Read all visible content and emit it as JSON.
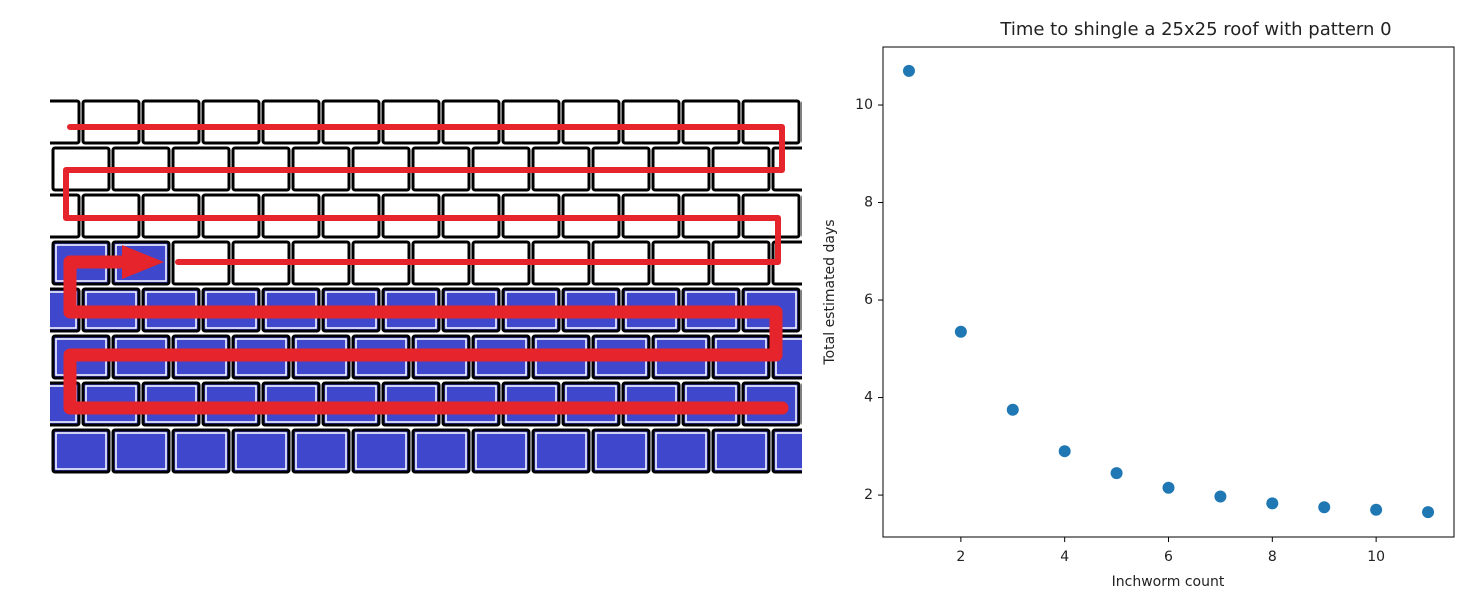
{
  "chart_data": {
    "type": "scatter",
    "title": "Time to shingle a 25x25 roof with pattern 0",
    "xlabel": "Inchworm count",
    "ylabel": "Total estimated days",
    "x": [
      1,
      2,
      3,
      4,
      5,
      6,
      7,
      8,
      9,
      10,
      11
    ],
    "values": [
      10.7,
      5.35,
      3.75,
      2.9,
      2.45,
      2.15,
      1.97,
      1.83,
      1.75,
      1.7,
      1.65
    ],
    "color": "#1f77b4",
    "xlim": [
      0.5,
      11.5
    ],
    "ylim": [
      1.14,
      11.19
    ],
    "xticks": [
      2,
      4,
      6,
      8,
      10
    ],
    "yticks": [
      2,
      4,
      6,
      8,
      10
    ]
  }
}
